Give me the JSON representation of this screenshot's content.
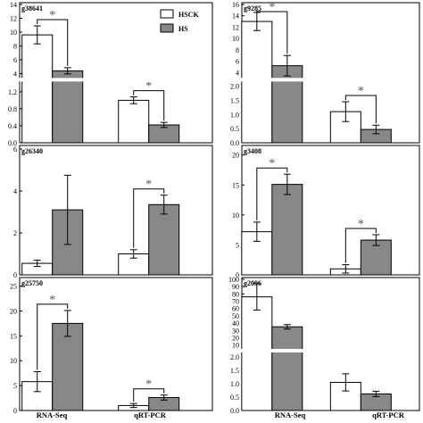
{
  "legend": [
    {
      "label": "HSCK",
      "color": "#ffffff"
    },
    {
      "label": "HS",
      "color": "#888888"
    }
  ],
  "categories": [
    "RNA-Seq",
    "qRT-PCR"
  ],
  "chart_data": [
    {
      "type": "bar",
      "gene": "g38641",
      "categories": [
        "RNA-Seq",
        "qRT-PCR"
      ],
      "series": [
        {
          "name": "HSCK",
          "values": [
            9.6,
            1.0
          ],
          "errors": [
            1.3,
            0.08
          ]
        },
        {
          "name": "HS",
          "values": [
            4.4,
            0.42
          ],
          "errors": [
            0.45,
            0.06
          ]
        }
      ],
      "significant": [
        true,
        true
      ],
      "axis_break": true,
      "y_segments": [
        {
          "range": [
            3.5,
            14
          ],
          "ticks": [
            "4",
            "6",
            "8",
            "10",
            "12",
            "14"
          ]
        },
        {
          "range": [
            0,
            1.4
          ],
          "ticks": [
            "0.0",
            "0.4",
            "0.8",
            "1.2"
          ]
        }
      ]
    },
    {
      "type": "bar",
      "gene": "g9285",
      "categories": [
        "RNA-Seq",
        "qRT-PCR"
      ],
      "series": [
        {
          "name": "HSCK",
          "values": [
            13.0,
            1.1
          ],
          "errors": [
            1.6,
            0.35
          ]
        },
        {
          "name": "HS",
          "values": [
            5.2,
            0.47
          ],
          "errors": [
            1.8,
            0.15
          ]
        }
      ],
      "significant": [
        true,
        true
      ],
      "axis_break": true,
      "y_segments": [
        {
          "range": [
            3.2,
            16
          ],
          "ticks": [
            "4",
            "6",
            "8",
            "10",
            "12",
            "14",
            "16"
          ]
        },
        {
          "range": [
            0,
            2.1
          ],
          "ticks": [
            "0.0",
            "0.5",
            "1.0",
            "1.5",
            "2.0"
          ]
        }
      ]
    },
    {
      "type": "bar",
      "gene": "g26340",
      "categories": [
        "RNA-Seq",
        "qRT-PCR"
      ],
      "series": [
        {
          "name": "HSCK",
          "values": [
            0.55,
            1.0
          ],
          "errors": [
            0.15,
            0.2
          ]
        },
        {
          "name": "HS",
          "values": [
            3.1,
            3.35
          ],
          "errors": [
            1.65,
            0.45
          ]
        }
      ],
      "significant": [
        false,
        true
      ],
      "axis_break": false,
      "ylim": [
        0,
        6
      ],
      "ticks": [
        "0",
        "2",
        "4",
        "6"
      ]
    },
    {
      "type": "bar",
      "gene": "g3408",
      "categories": [
        "RNA-Seq",
        "qRT-PCR"
      ],
      "series": [
        {
          "name": "HSCK",
          "values": [
            7.2,
            1.0
          ],
          "errors": [
            1.6,
            0.7
          ]
        },
        {
          "name": "HS",
          "values": [
            15.1,
            5.8
          ],
          "errors": [
            1.7,
            0.9
          ]
        }
      ],
      "significant": [
        true,
        true
      ],
      "axis_break": false,
      "ylim": [
        0,
        21
      ],
      "ticks": [
        "0",
        "5",
        "10",
        "15",
        "20"
      ]
    },
    {
      "type": "bar",
      "gene": "g25750",
      "categories": [
        "RNA-Seq",
        "qRT-PCR"
      ],
      "series": [
        {
          "name": "HSCK",
          "values": [
            5.8,
            1.0
          ],
          "errors": [
            2.0,
            0.4
          ]
        },
        {
          "name": "HS",
          "values": [
            17.5,
            2.6
          ],
          "errors": [
            2.6,
            0.5
          ]
        }
      ],
      "significant": [
        true,
        true
      ],
      "axis_break": false,
      "ylim": [
        0,
        26
      ],
      "ticks": [
        "0",
        "5",
        "10",
        "15",
        "20",
        "25"
      ]
    },
    {
      "type": "bar",
      "gene": "g2096",
      "categories": [
        "RNA-Seq",
        "qRT-PCR"
      ],
      "series": [
        {
          "name": "HSCK",
          "values": [
            76,
            1.05
          ],
          "errors": [
            18,
            0.32
          ]
        },
        {
          "name": "HS",
          "values": [
            35,
            0.62
          ],
          "errors": [
            3,
            0.1
          ]
        }
      ],
      "significant": [
        false,
        false
      ],
      "axis_break": true,
      "y_segments": [
        {
          "range": [
            6,
            100
          ],
          "ticks": [
            "10",
            "20",
            "30",
            "40",
            "50",
            "60",
            "70",
            "80",
            "90",
            "100"
          ]
        },
        {
          "range": [
            0,
            2.1
          ],
          "ticks": [
            "0.0",
            "0.5",
            "1.0",
            "1.5",
            "2.0"
          ]
        }
      ]
    }
  ]
}
